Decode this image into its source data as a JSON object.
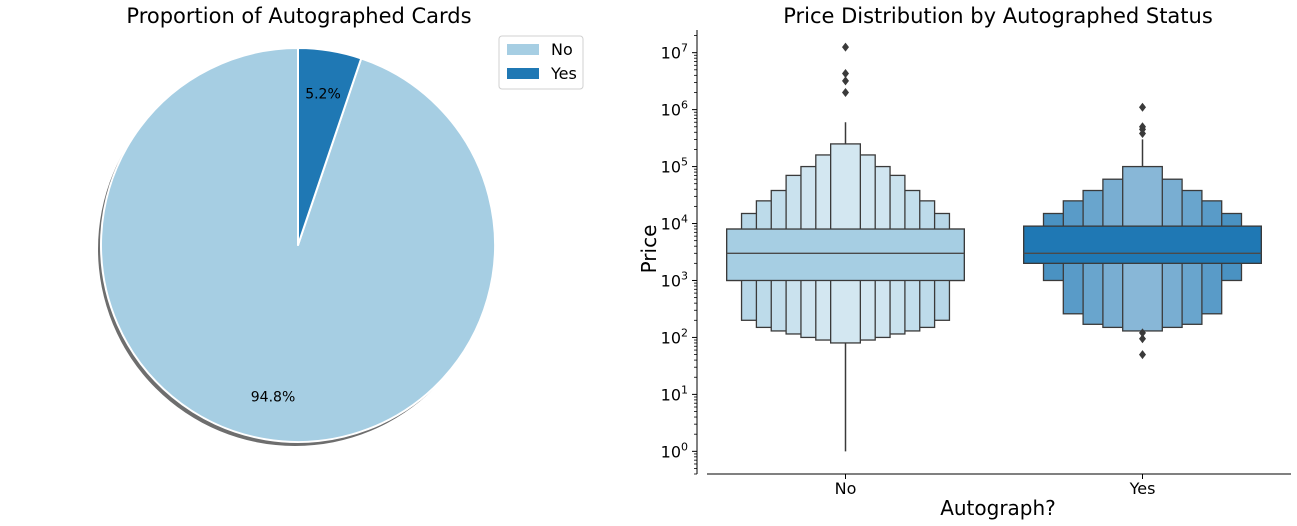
{
  "chart_data": [
    {
      "type": "pie",
      "title": "Proportion of Autographed Cards",
      "labels": [
        "No",
        "Yes"
      ],
      "values": [
        94.8,
        5.2
      ],
      "value_labels": [
        "94.8%",
        "5.2%"
      ],
      "colors": [
        "#a6cee3",
        "#1f78b4"
      ],
      "start_angle_deg": 90,
      "direction": "counterclockwise",
      "shadow": true,
      "legend": {
        "placement": "top-right",
        "entries": [
          "No",
          "Yes"
        ]
      }
    },
    {
      "type": "boxen",
      "title": "Price Distribution by Autographed Status",
      "xlabel": "Autograph?",
      "ylabel": "Price",
      "yscale": "log",
      "ylim": [
        0.4,
        25000000
      ],
      "yticks": [
        1,
        10,
        100,
        1000,
        10000,
        100000,
        1000000,
        10000000
      ],
      "ytick_labels": [
        {
          "base": "10",
          "exp": "0"
        },
        {
          "base": "10",
          "exp": "1"
        },
        {
          "base": "10",
          "exp": "2"
        },
        {
          "base": "10",
          "exp": "3"
        },
        {
          "base": "10",
          "exp": "4"
        },
        {
          "base": "10",
          "exp": "5"
        },
        {
          "base": "10",
          "exp": "6"
        },
        {
          "base": "10",
          "exp": "7"
        }
      ],
      "categories": [
        "No",
        "Yes"
      ],
      "series": [
        {
          "name": "No",
          "color": "#a6cee3",
          "median": 3000,
          "boxes": [
            {
              "low": 1000,
              "high": 8000
            },
            {
              "low": 200,
              "high": 15000
            },
            {
              "low": 150,
              "high": 25000
            },
            {
              "low": 130,
              "high": 38000
            },
            {
              "low": 115,
              "high": 70000
            },
            {
              "low": 100,
              "high": 100000
            },
            {
              "low": 90,
              "high": 160000
            },
            {
              "low": 80,
              "high": 250000
            }
          ],
          "whisker": [
            1,
            600000
          ],
          "outliers": [
            2000000,
            3200000,
            4300000,
            12500000
          ]
        },
        {
          "name": "Yes",
          "color": "#1f78b4",
          "median": 3000,
          "boxes": [
            {
              "low": 2000,
              "high": 9000
            },
            {
              "low": 1000,
              "high": 15000
            },
            {
              "low": 260,
              "high": 25000
            },
            {
              "low": 170,
              "high": 38000
            },
            {
              "low": 150,
              "high": 60000
            },
            {
              "low": 130,
              "high": 100000
            }
          ],
          "whisker": [
            110,
            300000
          ],
          "outliers": [
            50,
            95,
            120,
            380000,
            450000,
            500000,
            1100000
          ]
        }
      ]
    }
  ]
}
